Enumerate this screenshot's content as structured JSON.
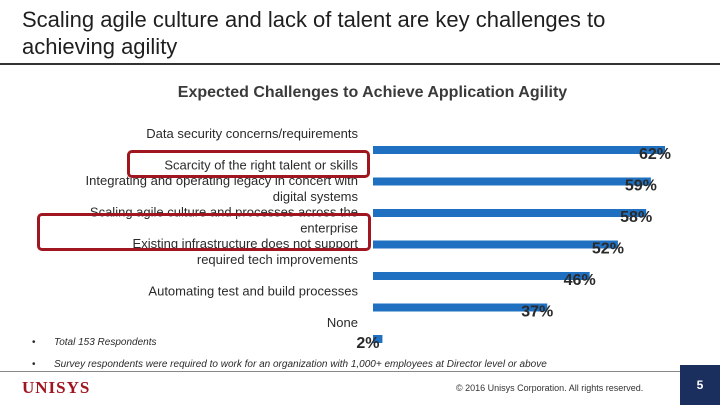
{
  "slide": {
    "title": "Scaling agile culture and lack of talent are key challenges to achieving agility",
    "notes": [
      "Total 153 Respondents",
      "Survey respondents were required to work for an organization with 1,000+ employees at Director level or above"
    ],
    "logo": "UNISYS",
    "copyright": "© 2016 Unisys Corporation. All rights reserved.",
    "page_number": "5"
  },
  "colors": {
    "bar": "#1f70c1",
    "highlight": "#a01620",
    "page_box": "#1b2f5e"
  },
  "chart_data": {
    "type": "bar",
    "orientation": "horizontal",
    "title": "Expected Challenges to Achieve Application Agility",
    "categories": [
      [
        "Data security concerns/requirements"
      ],
      [
        "Scarcity of the right talent or skills"
      ],
      [
        "Integrating and operating legacy in concert with",
        "digital systems"
      ],
      [
        "Scaling agile culture and  processes across the",
        "enterprise"
      ],
      [
        "Existing infrastructure does not  support",
        "required tech improvements"
      ],
      [
        "Automating test and build processes"
      ],
      [
        "None"
      ]
    ],
    "values": [
      62,
      59,
      58,
      52,
      46,
      37,
      2
    ],
    "value_labels": [
      "62%",
      "59%",
      "58%",
      "52%",
      "46%",
      "37%",
      "2%"
    ],
    "highlighted": [
      1,
      3
    ],
    "xlim": [
      0,
      62
    ],
    "grid": false,
    "legend": false
  }
}
